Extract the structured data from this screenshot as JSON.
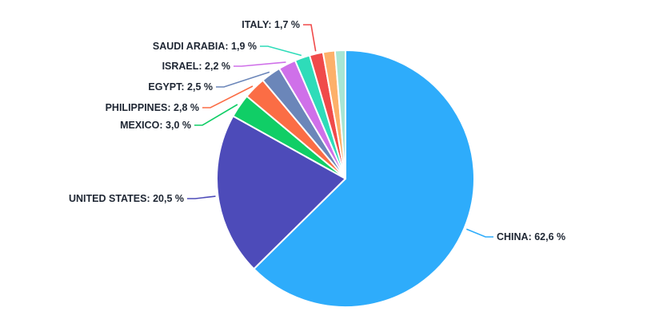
{
  "figure": {
    "background": "#FFFFFF",
    "label_color": "#1E2633"
  },
  "chart_data": {
    "type": "pie",
    "title": "",
    "unit": "%",
    "decimal_separator": ",",
    "start_angle_deg": 0,
    "direction": "clockwise",
    "legend": "none",
    "labels": "outside-with-leader-lines",
    "slices": [
      {
        "name": "CHINA",
        "value": 62.6,
        "label_text": "CHINA: 62,6 %",
        "color": "#2EACFB",
        "labeled": true
      },
      {
        "name": "UNITED STATES",
        "value": 20.5,
        "label_text": "UNITED STATES: 20,5 %",
        "color": "#4D4BB9",
        "labeled": true
      },
      {
        "name": "MEXICO",
        "value": 3.0,
        "label_text": "MEXICO: 3,0 %",
        "color": "#10CE66",
        "labeled": true
      },
      {
        "name": "PHILIPPINES",
        "value": 2.8,
        "label_text": "PHILIPPINES: 2,8 %",
        "color": "#FB6D45",
        "labeled": true
      },
      {
        "name": "EGYPT",
        "value": 2.5,
        "label_text": "EGYPT: 2,5 %",
        "color": "#6B86B9",
        "labeled": true
      },
      {
        "name": "ISRAEL",
        "value": 2.2,
        "label_text": "ISRAEL: 2,2 %",
        "color": "#CF70E9",
        "labeled": true
      },
      {
        "name": "SAUDI ARABIA",
        "value": 1.9,
        "label_text": "SAUDI ARABIA: 1,9 %",
        "color": "#2EDCB9",
        "labeled": true
      },
      {
        "name": "ITALY",
        "value": 1.7,
        "label_text": "ITALY: 1,7 %",
        "color": "#F04A4A",
        "labeled": true
      },
      {
        "name": "",
        "value": 1.5,
        "label_text": "",
        "color": "#FDB06A",
        "labeled": false,
        "estimated": true
      },
      {
        "name": "",
        "value": 1.3,
        "label_text": "",
        "color": "#A7E6D4",
        "labeled": false,
        "estimated": true
      }
    ]
  }
}
